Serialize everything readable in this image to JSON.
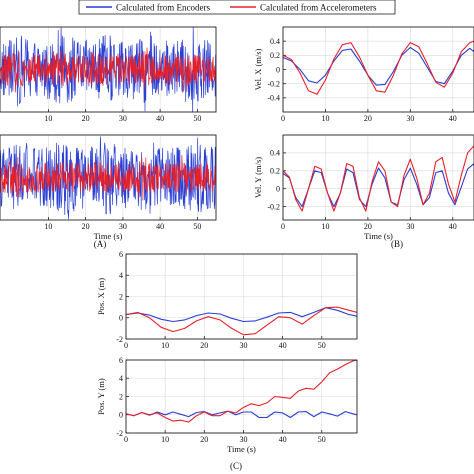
{
  "colors": {
    "encoders": "#2a3fd4",
    "accelerometers": "#e8202a",
    "axis": "#222222",
    "grid": "#d9d9d9"
  },
  "legend": {
    "items": [
      "Calculated from Encoders",
      "Calculated from Accelerometers"
    ],
    "placement": "top-center"
  },
  "chart_data": [
    {
      "panel": "A-top",
      "type": "line",
      "title": "",
      "xlabel": "",
      "ylabel": "",
      "xlim": [
        -3,
        55
      ],
      "xticks": [
        10,
        20,
        30,
        40,
        50
      ],
      "series": [
        {
          "name": "Calculated from Encoders",
          "kind": "noise",
          "center": 0,
          "amplitude": 0.9
        },
        {
          "name": "Calculated from Accelerometers",
          "kind": "noise",
          "center": 0,
          "amplitude": 0.45
        }
      ]
    },
    {
      "panel": "A-bottom",
      "type": "line",
      "title": "",
      "xlabel": "Time (s)",
      "ylabel": "",
      "xlim": [
        -3,
        55
      ],
      "xticks": [
        10,
        20,
        30,
        40,
        50
      ],
      "series": [
        {
          "name": "Calculated from Encoders",
          "kind": "noise",
          "center": 0,
          "amplitude": 0.95
        },
        {
          "name": "Calculated from Accelerometers",
          "kind": "noise",
          "center": 0,
          "amplitude": 0.45
        }
      ]
    },
    {
      "panel": "B-top",
      "type": "line",
      "title": "",
      "xlabel": "",
      "ylabel": "Vel. X (m/s)",
      "xlim": [
        0,
        45
      ],
      "ylim": [
        -0.6,
        0.6
      ],
      "xticks": [
        0,
        10,
        20,
        30,
        40
      ],
      "yticks": [
        -0.4,
        -0.2,
        0,
        0.2,
        0.4
      ],
      "series": [
        {
          "name": "Calculated from Encoders",
          "x": [
            0,
            2,
            4,
            6,
            8,
            10,
            12,
            14,
            16,
            18,
            20,
            22,
            24,
            26,
            28,
            30,
            32,
            34,
            36,
            38,
            40,
            42,
            44,
            45
          ],
          "y": [
            0.17,
            0.12,
            0.0,
            -0.16,
            -0.19,
            -0.08,
            0.12,
            0.27,
            0.29,
            0.12,
            -0.08,
            -0.22,
            -0.21,
            -0.03,
            0.2,
            0.31,
            0.23,
            0.03,
            -0.17,
            -0.2,
            -0.02,
            0.2,
            0.3,
            0.25
          ]
        },
        {
          "name": "Calculated from Accelerometers",
          "x": [
            0,
            2,
            4,
            6,
            8,
            10,
            12,
            14,
            16,
            18,
            20,
            22,
            24,
            26,
            28,
            30,
            32,
            34,
            36,
            38,
            40,
            42,
            44,
            45
          ],
          "y": [
            0.2,
            0.14,
            -0.05,
            -0.3,
            -0.35,
            -0.15,
            0.15,
            0.35,
            0.38,
            0.18,
            -0.08,
            -0.3,
            -0.32,
            -0.08,
            0.22,
            0.38,
            0.32,
            0.08,
            -0.18,
            -0.25,
            -0.05,
            0.25,
            0.38,
            0.4
          ]
        }
      ]
    },
    {
      "panel": "B-bottom",
      "type": "line",
      "title": "",
      "xlabel": "Time (s)",
      "ylabel": "Vel. Y (m/s)",
      "xlim": [
        0,
        45
      ],
      "ylim": [
        -0.35,
        0.6
      ],
      "xticks": [
        0,
        10,
        20,
        30,
        40
      ],
      "yticks": [
        -0.2,
        0,
        0.2,
        0.4
      ],
      "series": [
        {
          "name": "Calculated from Encoders",
          "x": [
            0,
            1.5,
            3,
            4.5,
            6,
            7.5,
            9,
            10.5,
            12,
            13.5,
            15,
            16.5,
            18,
            19.5,
            21,
            22.5,
            24,
            25.5,
            27,
            28.5,
            30,
            31.5,
            33,
            34.5,
            36,
            37.5,
            39,
            40.5,
            42,
            43.5,
            45
          ],
          "y": [
            0.17,
            0.12,
            -0.1,
            -0.2,
            0.0,
            0.2,
            0.18,
            -0.05,
            -0.2,
            -0.05,
            0.22,
            0.18,
            -0.12,
            -0.2,
            0.05,
            0.23,
            0.12,
            -0.15,
            -0.18,
            0.1,
            0.23,
            0.05,
            -0.18,
            -0.1,
            0.18,
            0.2,
            -0.05,
            -0.18,
            0.02,
            0.22,
            0.28
          ]
        },
        {
          "name": "Calculated from Accelerometers",
          "x": [
            0,
            1.5,
            3,
            4.5,
            6,
            7.5,
            9,
            10.5,
            12,
            13.5,
            15,
            16.5,
            18,
            19.5,
            21,
            22.5,
            24,
            25.5,
            27,
            28.5,
            30,
            31.5,
            33,
            34.5,
            36,
            37.5,
            39,
            40.5,
            42,
            43.5,
            45
          ],
          "y": [
            0.2,
            0.13,
            -0.12,
            -0.25,
            0.0,
            0.25,
            0.22,
            -0.05,
            -0.25,
            -0.05,
            0.28,
            0.25,
            -0.1,
            -0.25,
            0.08,
            0.3,
            0.2,
            -0.15,
            -0.2,
            0.15,
            0.33,
            0.12,
            -0.18,
            -0.05,
            0.3,
            0.35,
            0.05,
            -0.15,
            0.15,
            0.4,
            0.48
          ]
        }
      ]
    },
    {
      "panel": "C-top",
      "type": "line",
      "title": "",
      "xlabel": "",
      "ylabel": "Pos. X (m)",
      "xlim": [
        0,
        59
      ],
      "ylim": [
        -2,
        6
      ],
      "xticks": [
        0,
        10,
        20,
        30,
        40,
        50
      ],
      "yticks": [
        -2,
        0,
        2,
        4,
        6
      ],
      "series": [
        {
          "name": "Calculated from Encoders",
          "x": [
            0,
            3,
            6,
            9,
            12,
            15,
            18,
            21,
            24,
            27,
            30,
            33,
            36,
            39,
            42,
            45,
            48,
            51,
            54,
            57,
            59
          ],
          "y": [
            0.3,
            0.45,
            0.25,
            -0.15,
            -0.35,
            -0.2,
            0.2,
            0.45,
            0.35,
            -0.05,
            -0.35,
            -0.3,
            0.05,
            0.45,
            0.5,
            0.1,
            0.5,
            0.95,
            0.7,
            0.3,
            0.15
          ]
        },
        {
          "name": "Calculated from Accelerometers",
          "x": [
            0,
            3,
            6,
            9,
            12,
            15,
            18,
            21,
            24,
            27,
            30,
            33,
            36,
            39,
            42,
            45,
            48,
            51,
            54,
            57,
            59
          ],
          "y": [
            0.3,
            0.5,
            0.0,
            -0.9,
            -1.3,
            -1.0,
            -0.3,
            0.1,
            -0.2,
            -1.0,
            -1.6,
            -1.5,
            -0.7,
            0.1,
            0.0,
            -0.6,
            0.2,
            0.95,
            1.0,
            0.7,
            0.5
          ]
        }
      ]
    },
    {
      "panel": "C-bottom",
      "type": "line",
      "title": "",
      "xlabel": "Time (s)",
      "ylabel": "Pos. Y (m)",
      "xlim": [
        0,
        59
      ],
      "ylim": [
        -2,
        6
      ],
      "xticks": [
        0,
        10,
        20,
        30,
        40,
        50
      ],
      "yticks": [
        -2,
        0,
        2,
        4,
        6
      ],
      "series": [
        {
          "name": "Calculated from Encoders",
          "x": [
            0,
            2,
            4,
            6,
            8,
            10,
            12,
            14,
            16,
            18,
            20,
            22,
            24,
            26,
            28,
            30,
            32,
            34,
            36,
            38,
            40,
            42,
            44,
            46,
            48,
            50,
            52,
            54,
            56,
            58,
            59
          ],
          "y": [
            0.1,
            -0.1,
            0.25,
            -0.05,
            0.3,
            0.0,
            0.3,
            0.05,
            -0.2,
            0.25,
            0.35,
            0.0,
            0.2,
            0.4,
            0.0,
            0.3,
            0.3,
            -0.3,
            -0.3,
            0.3,
            0.2,
            -0.3,
            0.3,
            0.35,
            -0.2,
            0.3,
            0.1,
            -0.15,
            0.35,
            0.1,
            0.0
          ]
        },
        {
          "name": "Calculated from Accelerometers",
          "x": [
            0,
            2,
            4,
            6,
            8,
            10,
            12,
            14,
            16,
            18,
            20,
            22,
            24,
            26,
            28,
            30,
            32,
            34,
            36,
            38,
            40,
            42,
            44,
            46,
            48,
            50,
            52,
            54,
            56,
            58,
            59
          ],
          "y": [
            0.1,
            -0.1,
            0.25,
            0.0,
            0.2,
            -0.3,
            -0.7,
            -0.6,
            -0.8,
            -0.1,
            0.3,
            -0.1,
            -0.1,
            0.4,
            0.2,
            0.8,
            1.2,
            1.0,
            1.3,
            2.0,
            1.9,
            1.8,
            2.6,
            2.9,
            2.8,
            3.6,
            4.6,
            5.0,
            5.5,
            5.9,
            6.0
          ]
        }
      ]
    }
  ],
  "subfigure_labels": [
    "(A)",
    "(B)",
    "(C)"
  ]
}
